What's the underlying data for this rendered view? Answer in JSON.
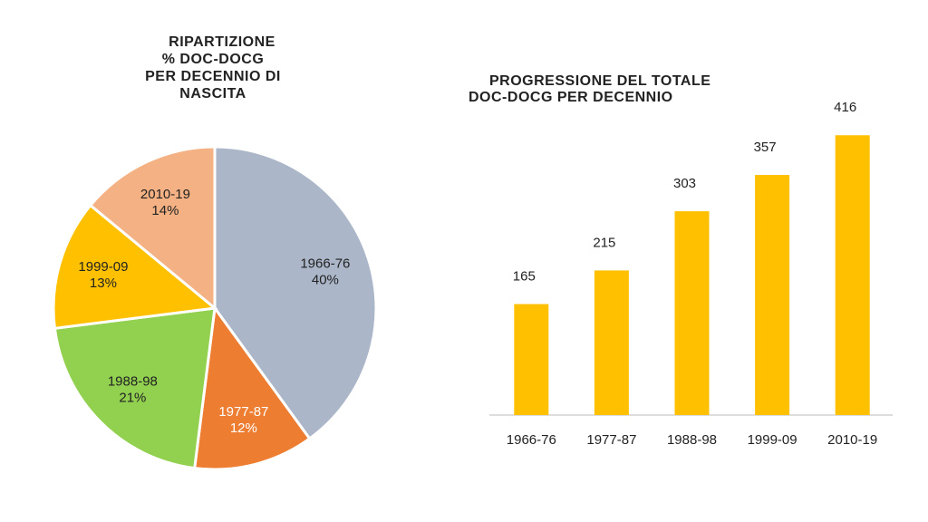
{
  "chart_data": [
    {
      "type": "pie",
      "title": [
        "RIPARTIZIONE",
        "% DOC-DOCG",
        "PER DECENNIO DI",
        "NASCITA"
      ],
      "categories": [
        "1966-76",
        "1977-87",
        "1988-98",
        "1999-09",
        "2010-19"
      ],
      "values": [
        40,
        12,
        21,
        13,
        14
      ],
      "value_labels": [
        "40%",
        "12%",
        "21%",
        "13%",
        "14%"
      ],
      "colors": [
        "#abb7c9",
        "#ed7d31",
        "#92d050",
        "#ffc000",
        "#f4b183"
      ],
      "label_colors": [
        "#222222",
        "#ffffff",
        "#222222",
        "#222222",
        "#222222"
      ]
    },
    {
      "type": "bar",
      "title": [
        "PROGRESSIONE DEL TOTALE",
        "DOC-DOCG PER DECENNIO"
      ],
      "categories": [
        "1966-76",
        "1977-87",
        "1988-98",
        "1999-09",
        "2010-19"
      ],
      "values": [
        165,
        215,
        303,
        357,
        416
      ],
      "color": "#ffc000",
      "ylim": [
        0,
        450
      ]
    }
  ]
}
